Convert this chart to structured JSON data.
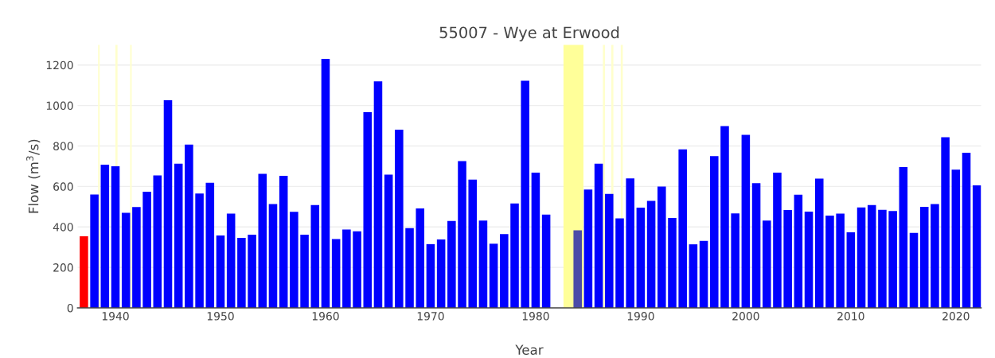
{
  "chart_data": {
    "type": "bar",
    "title": "55007 - Wye at Erwood",
    "xlabel": "Year",
    "ylabel": "Flow (m$^{3}$/s)",
    "x": [
      1937,
      1938,
      1939,
      1940,
      1941,
      1942,
      1943,
      1944,
      1945,
      1946,
      1947,
      1948,
      1949,
      1950,
      1951,
      1952,
      1953,
      1954,
      1955,
      1956,
      1957,
      1958,
      1959,
      1960,
      1961,
      1962,
      1963,
      1964,
      1965,
      1966,
      1967,
      1968,
      1969,
      1970,
      1971,
      1972,
      1973,
      1974,
      1975,
      1976,
      1977,
      1978,
      1979,
      1980,
      1981,
      1982,
      1983,
      1984,
      1985,
      1986,
      1987,
      1988,
      1989,
      1990,
      1991,
      1992,
      1993,
      1994,
      1995,
      1996,
      1997,
      1998,
      1999,
      2000,
      2001,
      2002,
      2003,
      2004,
      2005,
      2006,
      2007,
      2008,
      2009,
      2010,
      2011,
      2012,
      2013,
      2014,
      2015,
      2016,
      2017,
      2018,
      2019,
      2020,
      2021,
      2022
    ],
    "values": [
      354,
      560,
      707,
      700,
      470,
      498,
      574,
      654,
      1026,
      712,
      807,
      565,
      618,
      358,
      466,
      346,
      362,
      662,
      513,
      652,
      475,
      362,
      508,
      1230,
      340,
      387,
      378,
      967,
      1119,
      658,
      880,
      394,
      491,
      315,
      338,
      429,
      725,
      634,
      431,
      317,
      365,
      516,
      1122,
      668,
      461,
      null,
      null,
      383,
      585,
      712,
      563,
      442,
      640,
      495,
      529,
      599,
      444,
      783,
      314,
      331,
      750,
      898,
      467,
      855,
      616,
      431,
      668,
      483,
      559,
      476,
      639,
      456,
      466,
      373,
      496,
      508,
      484,
      479,
      696,
      370,
      499,
      513,
      843,
      683,
      766,
      605
    ],
    "colors": [
      "#ff0000",
      "#0000ff",
      "#0000ff",
      "#0000ff",
      "#0000ff",
      "#0000ff",
      "#0000ff",
      "#0000ff",
      "#0000ff",
      "#0000ff",
      "#0000ff",
      "#0000ff",
      "#0000ff",
      "#0000ff",
      "#0000ff",
      "#0000ff",
      "#0000ff",
      "#0000ff",
      "#0000ff",
      "#0000ff",
      "#0000ff",
      "#0000ff",
      "#0000ff",
      "#0000ff",
      "#0000ff",
      "#0000ff",
      "#0000ff",
      "#0000ff",
      "#0000ff",
      "#0000ff",
      "#0000ff",
      "#0000ff",
      "#0000ff",
      "#0000ff",
      "#0000ff",
      "#0000ff",
      "#0000ff",
      "#0000ff",
      "#0000ff",
      "#0000ff",
      "#0000ff",
      "#0000ff",
      "#0000ff",
      "#0000ff",
      "#0000ff",
      "#0000ff",
      "#0000ff",
      "#4b4ba8",
      "#0000ff",
      "#0000ff",
      "#0000ff",
      "#0000ff",
      "#0000ff",
      "#0000ff",
      "#0000ff",
      "#0000ff",
      "#0000ff",
      "#0000ff",
      "#0000ff",
      "#0000ff",
      "#0000ff",
      "#0000ff",
      "#0000ff",
      "#0000ff",
      "#0000ff",
      "#0000ff",
      "#0000ff",
      "#0000ff",
      "#0000ff",
      "#0000ff",
      "#0000ff",
      "#0000ff",
      "#0000ff",
      "#0000ff",
      "#0000ff",
      "#0000ff",
      "#0000ff",
      "#0000ff",
      "#0000ff",
      "#0000ff",
      "#0000ff",
      "#0000ff",
      "#0000ff",
      "#0000ff",
      "#0000ff",
      "#0000ff"
    ],
    "xlim": [
      1936.4,
      2022.4
    ],
    "xticks": [
      1940,
      1950,
      1960,
      1970,
      1980,
      1990,
      2000,
      2010,
      2020
    ],
    "ylim": [
      0,
      1300
    ],
    "yticks": [
      0,
      200,
      400,
      600,
      800,
      1000,
      1200
    ],
    "grid": "y",
    "bands": [
      {
        "axis": "x",
        "from": 1982.65,
        "to": 1984.55,
        "color": "#ffff99"
      },
      {
        "axis": "x",
        "from": 1938.35,
        "to": 1938.5,
        "color": "#ffffcc"
      },
      {
        "axis": "x",
        "from": 1940.0,
        "to": 1940.2,
        "color": "#ffffcc"
      },
      {
        "axis": "x",
        "from": 1941.4,
        "to": 1941.55,
        "color": "#ffffcc"
      },
      {
        "axis": "x",
        "from": 1986.4,
        "to": 1986.6,
        "color": "#ffffcc"
      },
      {
        "axis": "x",
        "from": 1987.2,
        "to": 1987.4,
        "color": "#ffffcc"
      },
      {
        "axis": "x",
        "from": 1988.1,
        "to": 1988.3,
        "color": "#ffffcc"
      }
    ]
  }
}
